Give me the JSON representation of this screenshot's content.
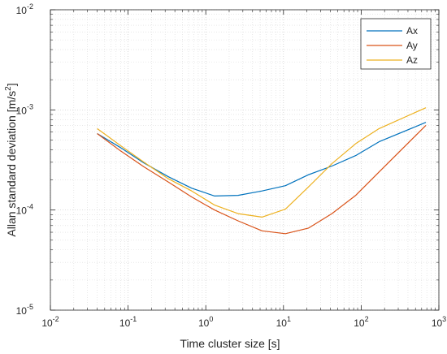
{
  "chart_data": {
    "type": "line",
    "xlabel": "Time cluster size [s]",
    "ylabel": "Allan standard deviation [m/s",
    "ylabel_sup": "2",
    "ylabel_end": "]",
    "x_scale": "log",
    "y_scale": "log",
    "xlim": [
      0.01,
      1000
    ],
    "ylim": [
      1e-05,
      0.01
    ],
    "x_ticks": [
      {
        "value": 0.01,
        "base": "10",
        "exp": "-2"
      },
      {
        "value": 0.1,
        "base": "10",
        "exp": "-1"
      },
      {
        "value": 1,
        "base": "10",
        "exp": "0"
      },
      {
        "value": 10,
        "base": "10",
        "exp": "1"
      },
      {
        "value": 100,
        "base": "10",
        "exp": "2"
      },
      {
        "value": 1000,
        "base": "10",
        "exp": "3"
      }
    ],
    "y_ticks": [
      {
        "value": 1e-05,
        "base": "10",
        "exp": "-5"
      },
      {
        "value": 0.0001,
        "base": "10",
        "exp": "-4"
      },
      {
        "value": 0.001,
        "base": "10",
        "exp": "-3"
      },
      {
        "value": 0.01,
        "base": "10",
        "exp": "-2"
      }
    ],
    "grid": true,
    "minor_grid": true,
    "legend_position": "top-right",
    "series": [
      {
        "name": "Ax",
        "color": "#0072BD",
        "x": [
          0.04,
          0.08,
          0.16,
          0.33,
          0.66,
          1.3,
          2.6,
          5.3,
          10.6,
          21,
          42,
          85,
          170,
          680
        ],
        "y": [
          0.00058,
          0.00042,
          0.000295,
          0.000215,
          0.000165,
          0.000138,
          0.00014,
          0.000155,
          0.000175,
          0.000225,
          0.000275,
          0.00035,
          0.00048,
          0.00075
        ]
      },
      {
        "name": "Ay",
        "color": "#D95319",
        "x": [
          0.04,
          0.08,
          0.16,
          0.33,
          0.66,
          1.3,
          2.6,
          5.3,
          10.6,
          21,
          42,
          85,
          170,
          680
        ],
        "y": [
          0.00058,
          0.00039,
          0.00027,
          0.00019,
          0.000135,
          0.0001,
          7.8e-05,
          6.2e-05,
          5.8e-05,
          6.6e-05,
          9.2e-05,
          0.00014,
          0.00024,
          0.0007
        ]
      },
      {
        "name": "Az",
        "color": "#EDB120",
        "x": [
          0.04,
          0.08,
          0.16,
          0.33,
          0.66,
          1.3,
          2.6,
          5.3,
          10.6,
          21,
          42,
          85,
          170,
          680
        ],
        "y": [
          0.00065,
          0.00044,
          0.0003,
          0.000205,
          0.000155,
          0.000112,
          9.2e-05,
          8.5e-05,
          0.000102,
          0.00017,
          0.00029,
          0.00046,
          0.00065,
          0.00105
        ]
      }
    ]
  }
}
